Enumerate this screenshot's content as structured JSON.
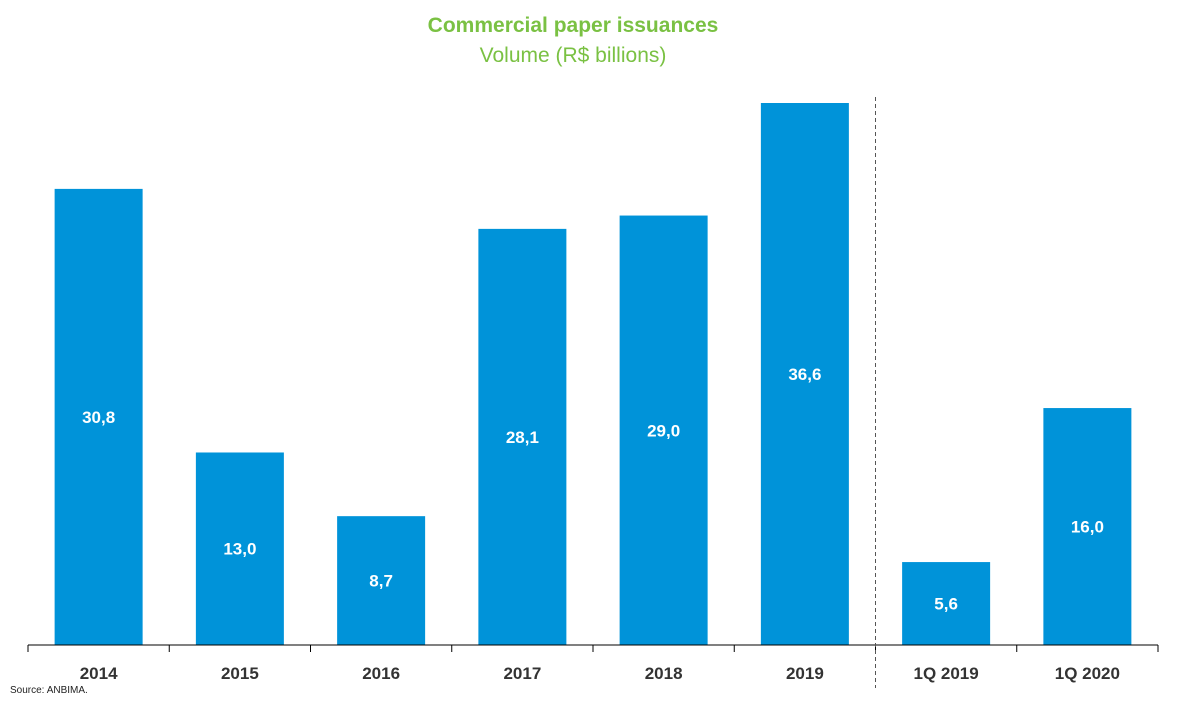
{
  "title": "Commercial paper issuances",
  "subtitle": "Volume (R$ billions)",
  "source": "Source: ANBIMA.",
  "colors": {
    "bar": "#0093d9",
    "title": "#7ac143",
    "axis": "#000000",
    "label": "#ffffff"
  },
  "chart_data": {
    "type": "bar",
    "title": "Commercial paper issuances",
    "subtitle": "Volume (R$ billions)",
    "categories": [
      "2014",
      "2015",
      "2016",
      "2017",
      "2018",
      "2019",
      "1Q 2019",
      "1Q 2020"
    ],
    "values": [
      30.8,
      13.0,
      8.7,
      28.1,
      29.0,
      36.6,
      5.6,
      16.0
    ],
    "value_labels": [
      "30,8",
      "13,0",
      "8,7",
      "28,1",
      "29,0",
      "36,6",
      "5,6",
      "16,0"
    ],
    "ylim": [
      0,
      36.6
    ],
    "separator_after_index": 5,
    "grid": false,
    "y_axis_visible": false
  }
}
